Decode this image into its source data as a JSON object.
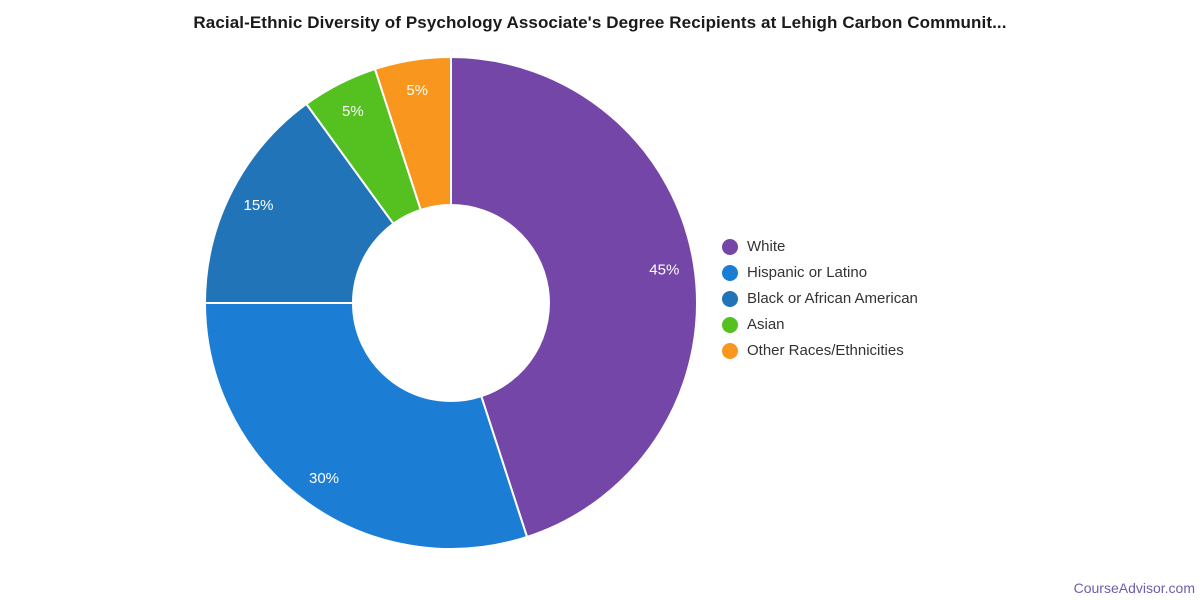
{
  "page": {
    "background": "#ffffff"
  },
  "footer": {
    "link": "CourseAdvisor.com",
    "link_color": "#6b5fae"
  },
  "chart_data": {
    "type": "pie",
    "subtype": "donut",
    "title": "Racial-Ethnic Diversity of Psychology Associate's Degree Recipients at Lehigh Carbon Communit...",
    "categories": [
      "White",
      "Hispanic or Latino",
      "Black or African American",
      "Asian",
      "Other Races/Ethnicities"
    ],
    "values": [
      45,
      30,
      15,
      5,
      5
    ],
    "slice_labels": [
      "45%",
      "30%",
      "15%",
      "5%",
      "5%"
    ],
    "colors": [
      "#7346a8",
      "#1c7dd5",
      "#2174b8",
      "#54c120",
      "#f8961d"
    ],
    "slice_label_color": "#ffffff",
    "slice_border_color": "#ffffff",
    "legend_text_color": "#333333",
    "start_angle_deg": 0,
    "direction": "clockwise",
    "legend_position": "right",
    "inner_radius_ratio": 0.4
  }
}
